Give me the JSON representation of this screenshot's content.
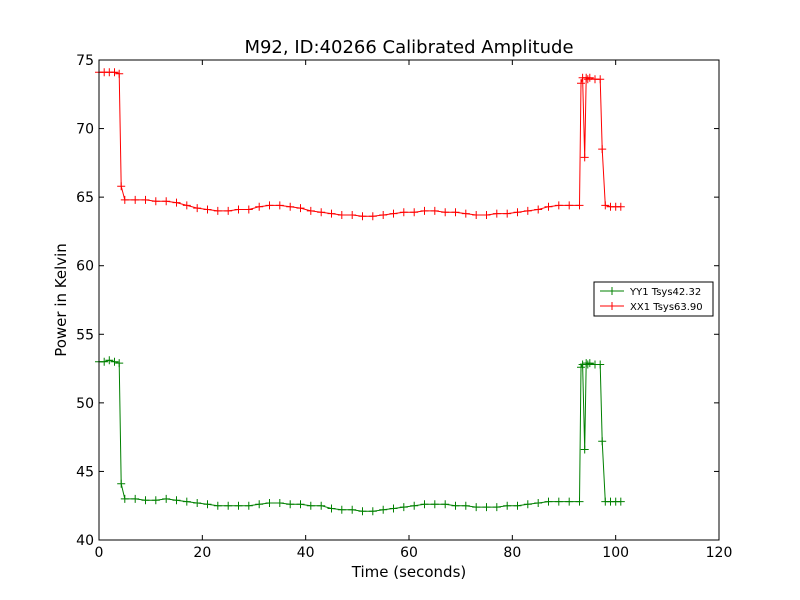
{
  "chart_data": {
    "type": "line",
    "title": "M92, ID:40266 Calibrated Amplitude",
    "xlabel": "Time (seconds)",
    "ylabel": "Power in Kelvin",
    "xlim": [
      0,
      120
    ],
    "ylim": [
      40,
      75
    ],
    "xticks": [
      "0",
      "20",
      "40",
      "60",
      "80",
      "100",
      "120"
    ],
    "yticks": [
      "40",
      "45",
      "50",
      "55",
      "60",
      "65",
      "70",
      "75"
    ],
    "grid": false,
    "legend_position": "right",
    "marker": "plus",
    "series": [
      {
        "name": "YY1 Tsys42.32",
        "color": "#008000",
        "x": [
          0,
          1,
          2,
          3,
          3.9,
          4.3,
          5,
          7,
          9,
          11,
          13,
          15,
          17,
          19,
          21,
          23,
          25,
          27,
          29,
          31,
          33,
          35,
          37,
          39,
          41,
          43,
          45,
          47,
          49,
          51,
          53,
          55,
          57,
          59,
          61,
          63,
          65,
          67,
          69,
          71,
          73,
          75,
          77,
          79,
          81,
          83,
          85,
          87,
          89,
          91,
          93,
          93.3,
          93.6,
          94,
          94.3,
          94.6,
          95,
          96,
          97,
          97.4,
          98,
          99,
          100,
          101
        ],
        "y": [
          53.0,
          53.0,
          53.1,
          53.0,
          52.9,
          44.1,
          43.0,
          43.0,
          42.9,
          42.9,
          43.0,
          42.9,
          42.8,
          42.7,
          42.6,
          42.5,
          42.5,
          42.5,
          42.5,
          42.6,
          42.7,
          42.7,
          42.6,
          42.6,
          42.5,
          42.5,
          42.3,
          42.2,
          42.2,
          42.1,
          42.1,
          42.2,
          42.3,
          42.4,
          42.5,
          42.6,
          42.6,
          42.6,
          42.5,
          42.5,
          42.4,
          42.4,
          42.4,
          42.5,
          42.5,
          42.6,
          42.7,
          42.8,
          42.8,
          42.8,
          42.8,
          52.6,
          52.8,
          46.6,
          52.9,
          52.8,
          52.9,
          52.8,
          52.8,
          47.2,
          42.8,
          42.8,
          42.8,
          42.8
        ]
      },
      {
        "name": "XX1 Tsys63.90",
        "color": "#ff0000",
        "x": [
          0,
          1,
          2,
          3,
          3.9,
          4.3,
          5,
          7,
          9,
          11,
          13,
          15,
          17,
          19,
          21,
          23,
          25,
          27,
          29,
          31,
          33,
          35,
          37,
          39,
          41,
          43,
          45,
          47,
          49,
          51,
          53,
          55,
          57,
          59,
          61,
          63,
          65,
          67,
          69,
          71,
          73,
          75,
          77,
          79,
          81,
          83,
          85,
          87,
          89,
          91,
          93,
          93.3,
          93.6,
          94,
          94.3,
          94.6,
          95,
          96,
          97,
          97.4,
          98,
          99,
          100,
          101
        ],
        "y": [
          74.1,
          74.1,
          74.1,
          74.1,
          74.0,
          65.8,
          64.8,
          64.8,
          64.8,
          64.7,
          64.7,
          64.6,
          64.4,
          64.2,
          64.1,
          64.0,
          64.0,
          64.1,
          64.1,
          64.3,
          64.4,
          64.4,
          64.3,
          64.2,
          64.0,
          63.9,
          63.8,
          63.7,
          63.7,
          63.6,
          63.6,
          63.7,
          63.8,
          63.9,
          63.9,
          64.0,
          64.0,
          63.9,
          63.9,
          63.8,
          63.7,
          63.7,
          63.8,
          63.8,
          63.9,
          64.0,
          64.1,
          64.3,
          64.4,
          64.4,
          64.4,
          73.3,
          73.7,
          67.9,
          73.7,
          73.6,
          73.7,
          73.6,
          73.6,
          68.5,
          64.4,
          64.3,
          64.3,
          64.3
        ]
      }
    ]
  }
}
